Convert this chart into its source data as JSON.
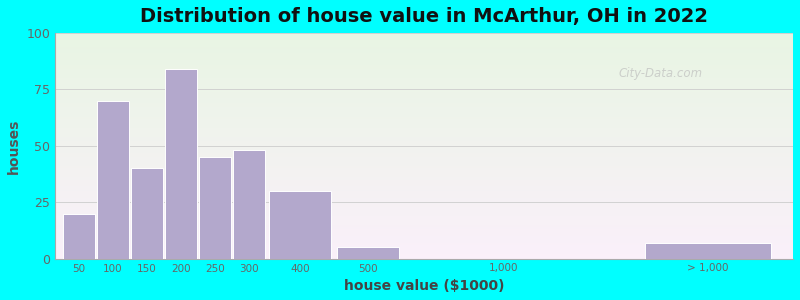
{
  "title": "Distribution of house value in McArthur, OH in 2022",
  "xlabel": "house value ($1000)",
  "ylabel": "houses",
  "bar_color": "#b3a8cc",
  "bar_edgecolor": "#ffffff",
  "outer_background": "#00ffff",
  "ylim": [
    0,
    100
  ],
  "yticks": [
    0,
    25,
    50,
    75,
    100
  ],
  "values": [
    20,
    70,
    40,
    84,
    45,
    48,
    30,
    5,
    0,
    7
  ],
  "tick_labels": [
    "50",
    "100",
    "150",
    "200",
    "250",
    "300",
    "400",
    "500",
    "1,000",
    "> 1,000"
  ],
  "display_centers": [
    0.5,
    1.5,
    2.5,
    3.5,
    4.5,
    5.5,
    7.0,
    9.0,
    13.0,
    19.0
  ],
  "display_widths": [
    1.0,
    1.0,
    1.0,
    1.0,
    1.0,
    1.0,
    2.0,
    2.0,
    4.0,
    4.0
  ],
  "tick_positions": [
    0.5,
    1.5,
    2.5,
    3.5,
    4.5,
    5.5,
    7.0,
    9.0,
    13.0,
    19.0
  ],
  "xlim": [
    -0.2,
    21.5
  ],
  "title_fontsize": 14,
  "axis_label_fontsize": 10
}
